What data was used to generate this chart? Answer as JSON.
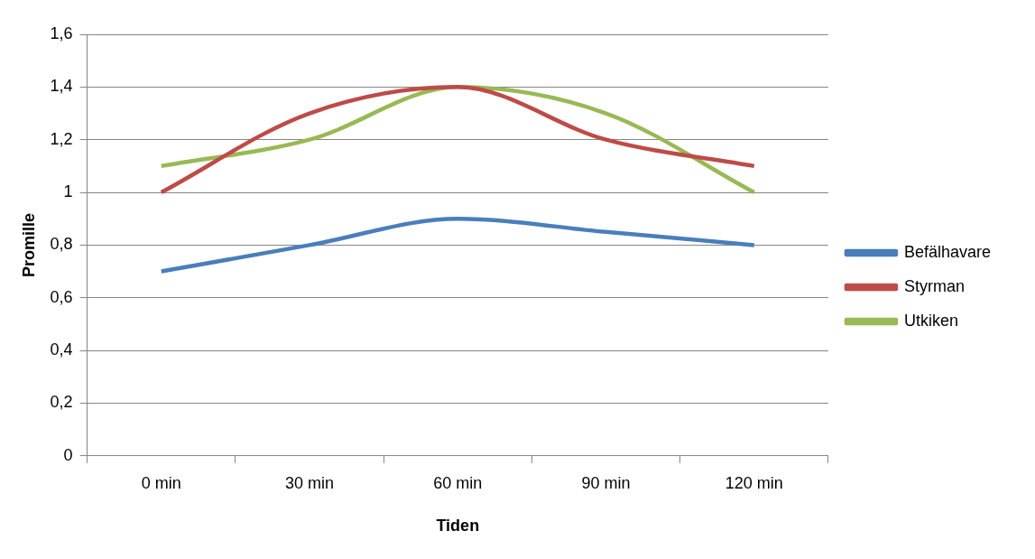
{
  "chart_data": {
    "type": "line",
    "xlabel": "Tiden",
    "ylabel": "Promille",
    "categories": [
      "0 min",
      "30 min",
      "60 min",
      "90 min",
      "120 min"
    ],
    "series": [
      {
        "name": "Befälhavare",
        "color": "#4a7ebb",
        "values": [
          0.7,
          0.8,
          0.9,
          0.85,
          0.8
        ]
      },
      {
        "name": "Styrman",
        "color": "#be4b48",
        "values": [
          1.0,
          1.3,
          1.4,
          1.2,
          1.1
        ]
      },
      {
        "name": "Utkiken",
        "color": "#98b954",
        "values": [
          1.1,
          1.2,
          1.4,
          1.3,
          1.0
        ]
      }
    ],
    "ylim": [
      0,
      1.6
    ],
    "yticks": [
      0,
      {
        "value": 0.2,
        "label": "0,2"
      },
      {
        "value": 0.4,
        "label": "0,4"
      },
      {
        "value": 0.6,
        "label": "0,6"
      },
      {
        "value": 0.8,
        "label": "0,8"
      },
      1,
      {
        "value": 1.2,
        "label": "1,2"
      },
      {
        "value": 1.4,
        "label": "1,4"
      },
      {
        "value": 1.6,
        "label": "1,6"
      }
    ],
    "grid": "y",
    "legend": "right",
    "marker": "none",
    "line_style": "solid"
  }
}
